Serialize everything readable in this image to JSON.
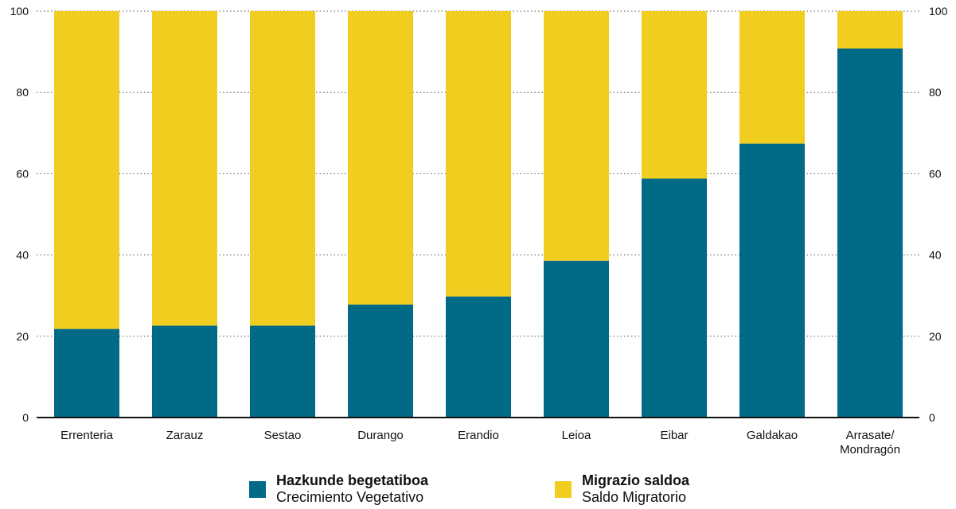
{
  "chart_data": {
    "type": "bar",
    "stacked": true,
    "percent_stacked": true,
    "categories": [
      "Errenteria",
      "Zarauz",
      "Sestao",
      "Durango",
      "Erandio",
      "Leioa",
      "Eibar",
      "Galdakao",
      "Arrasate/\nMondragón"
    ],
    "series": [
      {
        "name": "Hazkunde begetatiboa / Crecimiento Vegetativo",
        "values": [
          21.8,
          22.6,
          22.6,
          27.8,
          29.8,
          38.6,
          58.8,
          67.4,
          90.8
        ],
        "color": "#006a87"
      },
      {
        "name": "Migrazio saldoa / Saldo Migratorio",
        "values": [
          78.2,
          77.4,
          77.4,
          72.2,
          70.2,
          61.4,
          41.2,
          32.6,
          9.2
        ],
        "color": "#f0cd1e"
      }
    ],
    "ylim": [
      0,
      100
    ],
    "yticks": [
      "0",
      "20",
      "40",
      "60",
      "80",
      "100"
    ],
    "y_axis_both_sides": true,
    "grid": "dotted horizontal",
    "legend_position": "bottom-center",
    "xlabel": "",
    "ylabel": "",
    "title": ""
  },
  "legend": [
    {
      "title": "Hazkunde begetatiboa",
      "subtitle": "Crecimiento Vegetativo",
      "color": "#006a87"
    },
    {
      "title": "Migrazio saldoa",
      "subtitle": "Saldo Migratorio",
      "color": "#f0cd1e"
    }
  ]
}
